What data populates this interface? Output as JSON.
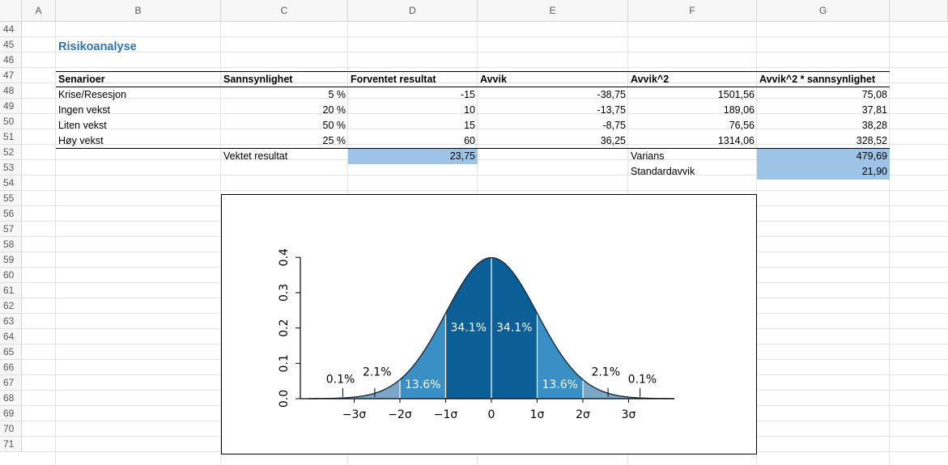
{
  "columns": [
    "A",
    "B",
    "C",
    "D",
    "E",
    "F",
    "G"
  ],
  "rows": [
    "44",
    "45",
    "46",
    "47",
    "48",
    "49",
    "50",
    "51",
    "52",
    "53",
    "54",
    "55",
    "56",
    "57",
    "58",
    "59",
    "60",
    "61",
    "62",
    "63",
    "64",
    "65",
    "66",
    "67",
    "68",
    "69",
    "70",
    "71"
  ],
  "title": "Risikoanalyse",
  "table": {
    "headers": [
      "Senarioer",
      "Sannsynlighet",
      "Forventet resultat",
      "Avvik",
      "Avvik^2",
      "Avvik^2 * sannsynlighet"
    ],
    "rows": [
      [
        "Krise/Resesjon",
        "5 %",
        "-15",
        "-38,75",
        "1501,56",
        "75,08"
      ],
      [
        "Ingen vekst",
        "20 %",
        "10",
        "-13,75",
        "189,06",
        "37,81"
      ],
      [
        "Liten vekst",
        "50 %",
        "15",
        "-8,75",
        "76,56",
        "38,28"
      ],
      [
        "Høy vekst",
        "25 %",
        "60",
        "36,25",
        "1314,06",
        "328,52"
      ]
    ]
  },
  "summary": {
    "weighted_label": "Vektet resultat",
    "weighted_value": "23,75",
    "variance_label": "Varians",
    "variance_value": "479,69",
    "stddev_label": "Standardavvik",
    "stddev_value": "21,90"
  },
  "chart_data": {
    "type": "area",
    "x": [
      -4,
      -3,
      -2,
      -1,
      0,
      1,
      2,
      3,
      4
    ],
    "ylim": [
      0,
      0.4
    ],
    "yticks": [
      "0.0",
      "0.1",
      "0.2",
      "0.3",
      "0.4"
    ],
    "xticks": [
      "−3σ",
      "−2σ",
      "−1σ",
      "0",
      "1σ",
      "2σ",
      "3σ"
    ],
    "regions": [
      {
        "from": -1,
        "to": 0,
        "label": "34.1%",
        "color": "#0b5e96"
      },
      {
        "from": 0,
        "to": 1,
        "label": "34.1%",
        "color": "#0b5e96"
      },
      {
        "from": -2,
        "to": -1,
        "label": "13.6%",
        "color": "#3a8fc4"
      },
      {
        "from": 1,
        "to": 2,
        "label": "13.6%",
        "color": "#3a8fc4"
      },
      {
        "from": -3,
        "to": -2,
        "label": "2.1%",
        "color": "#7aa6c8"
      },
      {
        "from": 2,
        "to": 3,
        "label": "2.1%",
        "color": "#7aa6c8"
      },
      {
        "from": -4,
        "to": -3,
        "label": "0.1%",
        "color": "#a9c4da"
      },
      {
        "from": 3,
        "to": 4,
        "label": "0.1%",
        "color": "#a9c4da"
      }
    ]
  }
}
